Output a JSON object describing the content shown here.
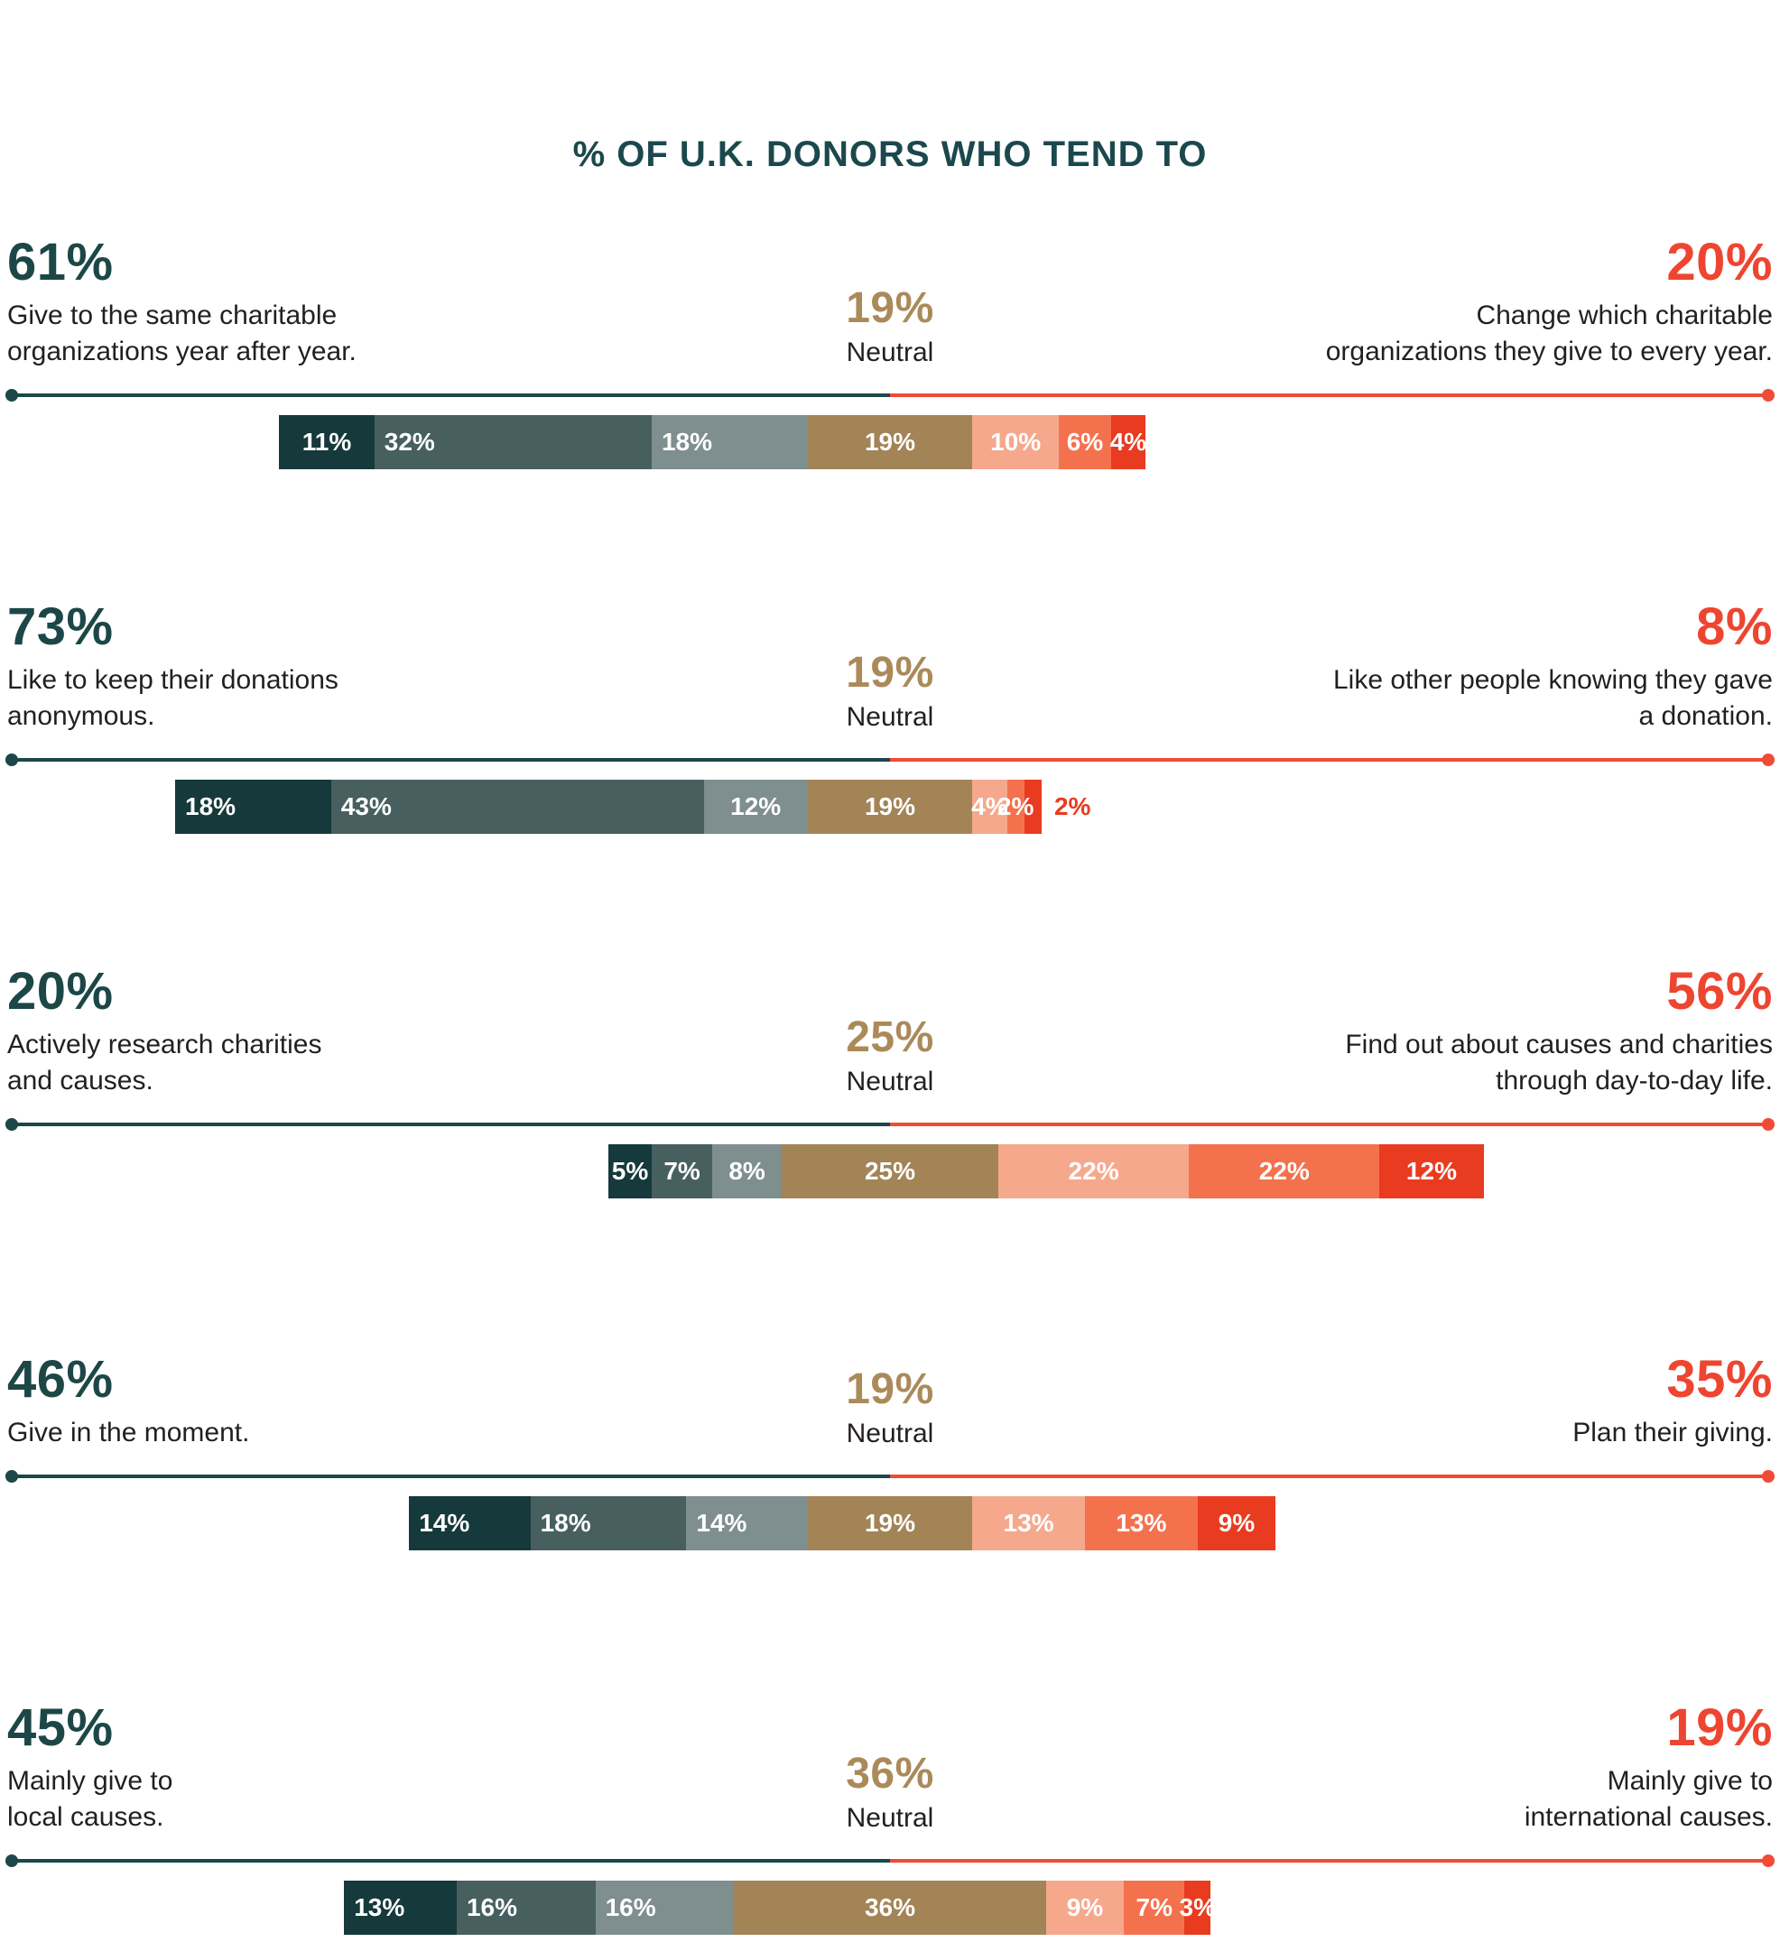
{
  "title": "% OF U.K. DONORS WHO TEND TO",
  "colors": {
    "title_teal": "#1b484d",
    "teal": "#1d4747",
    "tan": "#ab8a5a",
    "red": "#ee4531",
    "desc_text": "#231f20",
    "line_teal": "#1d4748",
    "line_red": "#f04b36",
    "bar_label": "#ffffff",
    "segments": [
      "#16393b",
      "#47605f",
      "#7f8e8e",
      "#a28457",
      "#f6a88d",
      "#f4714e",
      "#e93b20"
    ]
  },
  "chart_data": {
    "type": "bar",
    "subtype": "diverging-stacked-horizontal",
    "title": "% OF U.K. DONORS WHO TEND TO",
    "legend_position": "none",
    "grid": false,
    "axis": "none",
    "units": "percent of U.K. donors",
    "rows": [
      {
        "left": {
          "value": "61%",
          "label": "Give to the same charitable\norganizations year after year."
        },
        "neutral": {
          "value": "19%",
          "label": "Neutral"
        },
        "right": {
          "value": "20%",
          "label": "Change which charitable\norganizations they give to every year."
        },
        "segments": [
          {
            "value": 11,
            "label": "11%"
          },
          {
            "value": 32,
            "label": "32%"
          },
          {
            "value": 18,
            "label": "18%"
          },
          {
            "value": 19,
            "label": "19%"
          },
          {
            "value": 10,
            "label": "10%"
          },
          {
            "value": 6,
            "label": "6%"
          },
          {
            "value": 4,
            "label": "4%"
          }
        ]
      },
      {
        "left": {
          "value": "73%",
          "label": "Like to keep their donations\nanonymous."
        },
        "neutral": {
          "value": "19%",
          "label": "Neutral"
        },
        "right": {
          "value": "8%",
          "label": "Like other people knowing they gave\na donation."
        },
        "segments": [
          {
            "value": 18,
            "label": "18%"
          },
          {
            "value": 43,
            "label": "43%"
          },
          {
            "value": 12,
            "label": "12%"
          },
          {
            "value": 19,
            "label": "19%"
          },
          {
            "value": 4,
            "label": "4%"
          },
          {
            "value": 2,
            "label": "2%"
          },
          {
            "value": 2,
            "label": "2%",
            "label_outside": true
          }
        ]
      },
      {
        "left": {
          "value": "20%",
          "label": "Actively research charities\nand causes."
        },
        "neutral": {
          "value": "25%",
          "label": "Neutral"
        },
        "right": {
          "value": "56%",
          "label": "Find out about causes and charities\nthrough day-to-day life."
        },
        "segments": [
          {
            "value": 5,
            "label": "5%"
          },
          {
            "value": 7,
            "label": "7%"
          },
          {
            "value": 8,
            "label": "8%"
          },
          {
            "value": 25,
            "label": "25%"
          },
          {
            "value": 22,
            "label": "22%"
          },
          {
            "value": 22,
            "label": "22%"
          },
          {
            "value": 12,
            "label": "12%"
          }
        ]
      },
      {
        "left": {
          "value": "46%",
          "label": "Give in the moment."
        },
        "neutral": {
          "value": "19%",
          "label": "Neutral"
        },
        "right": {
          "value": "35%",
          "label": "Plan their giving."
        },
        "segments": [
          {
            "value": 14,
            "label": "14%"
          },
          {
            "value": 18,
            "label": "18%"
          },
          {
            "value": 14,
            "label": "14%"
          },
          {
            "value": 19,
            "label": "19%"
          },
          {
            "value": 13,
            "label": "13%"
          },
          {
            "value": 13,
            "label": "13%"
          },
          {
            "value": 9,
            "label": "9%"
          }
        ]
      },
      {
        "left": {
          "value": "45%",
          "label": "Mainly give to\nlocal causes."
        },
        "neutral": {
          "value": "36%",
          "label": "Neutral"
        },
        "right": {
          "value": "19%",
          "label": "Mainly give to\ninternational causes."
        },
        "segments": [
          {
            "value": 13,
            "label": "13%"
          },
          {
            "value": 16,
            "label": "16%"
          },
          {
            "value": 16,
            "label": "16%"
          },
          {
            "value": 36,
            "label": "36%"
          },
          {
            "value": 9,
            "label": "9%"
          },
          {
            "value": 7,
            "label": "7%"
          },
          {
            "value": 3,
            "label": "3%"
          }
        ]
      }
    ]
  }
}
